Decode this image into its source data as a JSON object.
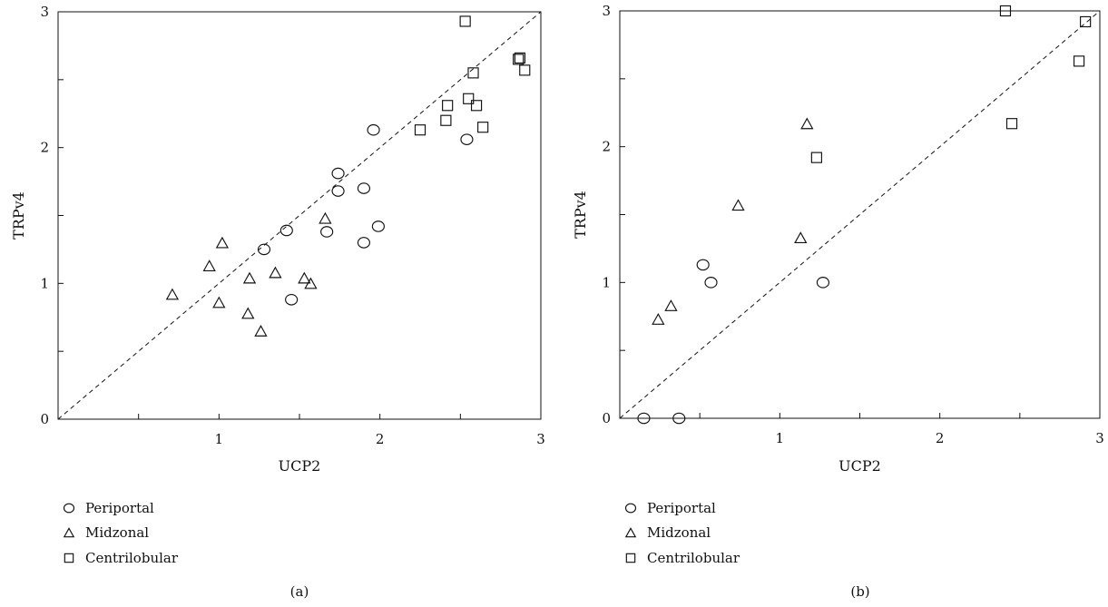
{
  "figure": {
    "panel_captions": [
      "(a)",
      "(b)"
    ]
  },
  "chart_data": [
    {
      "type": "scatter",
      "title": "",
      "xlabel": "UCP2",
      "ylabel": "TRPv4",
      "xlim": [
        0,
        3
      ],
      "ylim": [
        0,
        3
      ],
      "x_ticks": [
        "1",
        "2",
        "3"
      ],
      "y_ticks": [
        "0",
        "1",
        "2",
        "3"
      ],
      "caption": "(a)",
      "reference_line": {
        "style": "dashed",
        "from": [
          0,
          0
        ],
        "to": [
          3,
          3
        ]
      },
      "legend": [
        {
          "name": "Periportal",
          "marker": "circle"
        },
        {
          "name": "Midzonal",
          "marker": "triangle"
        },
        {
          "name": "Centrilobular",
          "marker": "square"
        }
      ],
      "series": [
        {
          "name": "Periportal",
          "marker": "circle",
          "points": [
            [
              1.28,
              1.25
            ],
            [
              1.42,
              1.39
            ],
            [
              1.45,
              0.88
            ],
            [
              1.67,
              1.38
            ],
            [
              1.74,
              1.81
            ],
            [
              1.74,
              1.68
            ],
            [
              1.9,
              1.7
            ],
            [
              1.9,
              1.3
            ],
            [
              1.96,
              2.13
            ],
            [
              1.99,
              1.42
            ],
            [
              2.54,
              2.06
            ]
          ]
        },
        {
          "name": "Midzonal",
          "marker": "triangle",
          "points": [
            [
              0.71,
              0.92
            ],
            [
              0.94,
              1.13
            ],
            [
              1.0,
              0.86
            ],
            [
              1.02,
              1.3
            ],
            [
              1.18,
              0.78
            ],
            [
              1.19,
              1.04
            ],
            [
              1.26,
              0.65
            ],
            [
              1.35,
              1.08
            ],
            [
              1.53,
              1.04
            ],
            [
              1.57,
              1.0
            ],
            [
              1.66,
              1.48
            ]
          ]
        },
        {
          "name": "Centrilobular",
          "marker": "square",
          "points": [
            [
              2.25,
              2.13
            ],
            [
              2.41,
              2.2
            ],
            [
              2.42,
              2.31
            ],
            [
              2.53,
              2.93
            ],
            [
              2.55,
              2.36
            ],
            [
              2.58,
              2.55
            ],
            [
              2.6,
              2.31
            ],
            [
              2.64,
              2.15
            ],
            [
              2.86,
              2.65
            ],
            [
              2.87,
              2.66
            ],
            [
              2.9,
              2.57
            ]
          ]
        }
      ]
    },
    {
      "type": "scatter",
      "title": "",
      "xlabel": "UCP2",
      "ylabel": "TRPv4",
      "xlim": [
        0,
        3
      ],
      "ylim": [
        0,
        3
      ],
      "x_ticks": [
        "1",
        "2",
        "3"
      ],
      "y_ticks": [
        "0",
        "1",
        "2",
        "3"
      ],
      "caption": "(b)",
      "reference_line": {
        "style": "dashed",
        "from": [
          0,
          0
        ],
        "to": [
          3,
          3
        ]
      },
      "legend": [
        {
          "name": "Periportal",
          "marker": "circle"
        },
        {
          "name": "Midzonal",
          "marker": "triangle"
        },
        {
          "name": "Centrilobular",
          "marker": "square"
        }
      ],
      "series": [
        {
          "name": "Periportal",
          "marker": "circle",
          "points": [
            [
              0.15,
              0.0
            ],
            [
              0.37,
              0.0
            ],
            [
              0.52,
              1.13
            ],
            [
              0.57,
              1.0
            ],
            [
              1.27,
              1.0
            ]
          ]
        },
        {
          "name": "Midzonal",
          "marker": "triangle",
          "points": [
            [
              0.24,
              0.73
            ],
            [
              0.32,
              0.83
            ],
            [
              0.74,
              1.57
            ],
            [
              1.13,
              1.33
            ],
            [
              1.17,
              2.17
            ]
          ]
        },
        {
          "name": "Centrilobular",
          "marker": "square",
          "points": [
            [
              1.23,
              1.92
            ],
            [
              2.41,
              3.0
            ],
            [
              2.45,
              2.17
            ],
            [
              2.87,
              2.63
            ],
            [
              2.91,
              2.92
            ]
          ]
        }
      ]
    }
  ]
}
